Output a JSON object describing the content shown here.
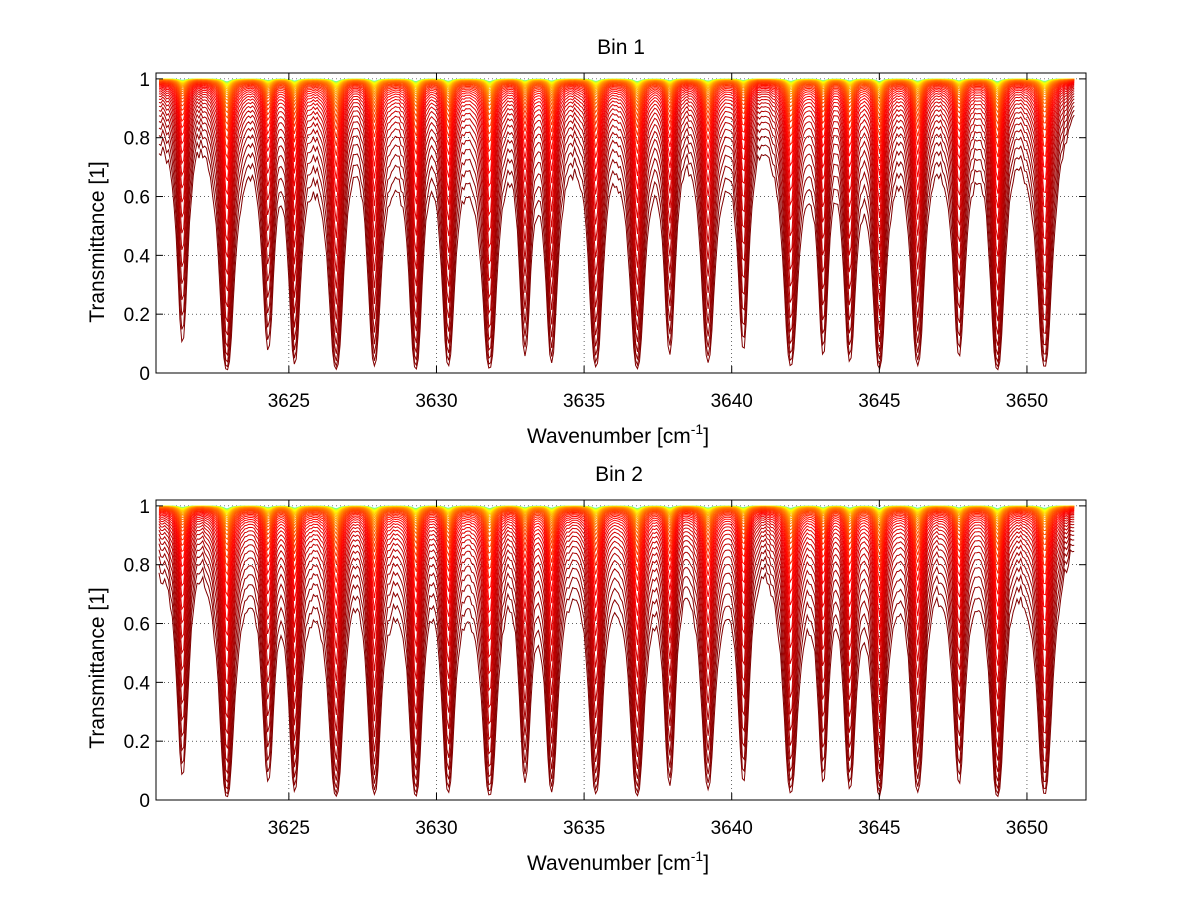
{
  "chart_data": [
    {
      "type": "line",
      "title": "Bin 1",
      "xlabel": "Wavenumber [cm",
      "xlabel_sup": "-1",
      "xlabel_tail": "]",
      "ylabel": "Transmittance [1]",
      "xlim": [
        3620.5,
        3652
      ],
      "ylim": [
        0,
        1.02
      ],
      "xticks": [
        3625,
        3630,
        3635,
        3640,
        3645,
        3650
      ],
      "yticks": [
        0,
        0.2,
        0.4,
        0.6,
        0.8,
        1
      ],
      "ytick_labels": [
        "0",
        "0.2",
        "0.4",
        "0.6",
        "0.8",
        "1"
      ],
      "grid": true,
      "series_count": 40,
      "colormap": "jet (top curves green/yellow, lower curves orange to dark red)",
      "absorption_lines": [
        {
          "wn": 3621.4,
          "strength": 0.5,
          "width": 0.14
        },
        {
          "wn": 3622.9,
          "strength": 1.0,
          "width": 0.13
        },
        {
          "wn": 3624.3,
          "strength": 0.55,
          "width": 0.14
        },
        {
          "wn": 3625.2,
          "strength": 0.75,
          "width": 0.12
        },
        {
          "wn": 3626.6,
          "strength": 0.95,
          "width": 0.14
        },
        {
          "wn": 3627.9,
          "strength": 0.8,
          "width": 0.13
        },
        {
          "wn": 3629.3,
          "strength": 0.95,
          "width": 0.12
        },
        {
          "wn": 3630.4,
          "strength": 0.8,
          "width": 0.13
        },
        {
          "wn": 3631.8,
          "strength": 0.9,
          "width": 0.14
        },
        {
          "wn": 3633.0,
          "strength": 0.6,
          "width": 0.13
        },
        {
          "wn": 3633.9,
          "strength": 0.7,
          "width": 0.12
        },
        {
          "wn": 3635.4,
          "strength": 0.85,
          "width": 0.14
        },
        {
          "wn": 3636.8,
          "strength": 0.9,
          "width": 0.13
        },
        {
          "wn": 3637.9,
          "strength": 0.6,
          "width": 0.13
        },
        {
          "wn": 3639.2,
          "strength": 0.7,
          "width": 0.14
        },
        {
          "wn": 3640.4,
          "strength": 0.55,
          "width": 0.13
        },
        {
          "wn": 3642.0,
          "strength": 0.8,
          "width": 0.14
        },
        {
          "wn": 3643.1,
          "strength": 0.6,
          "width": 0.12
        },
        {
          "wn": 3644.0,
          "strength": 0.7,
          "width": 0.13
        },
        {
          "wn": 3645.0,
          "strength": 0.9,
          "width": 0.12
        },
        {
          "wn": 3646.3,
          "strength": 0.8,
          "width": 0.14
        },
        {
          "wn": 3647.7,
          "strength": 0.6,
          "width": 0.13
        },
        {
          "wn": 3649.0,
          "strength": 1.0,
          "width": 0.13
        },
        {
          "wn": 3650.6,
          "strength": 0.85,
          "width": 0.14
        }
      ]
    },
    {
      "type": "line",
      "title": "Bin 2",
      "xlabel": "Wavenumber [cm",
      "xlabel_sup": "-1",
      "xlabel_tail": "]",
      "ylabel": "Transmittance [1]",
      "xlim": [
        3620.5,
        3652
      ],
      "ylim": [
        0,
        1.02
      ],
      "xticks": [
        3625,
        3630,
        3635,
        3640,
        3645,
        3650
      ],
      "yticks": [
        0,
        0.2,
        0.4,
        0.6,
        0.8,
        1
      ],
      "ytick_labels": [
        "0",
        "0.2",
        "0.4",
        "0.6",
        "0.8",
        "1"
      ],
      "grid": true,
      "series_count": 40,
      "colormap": "jet (top curves green/yellow, lower curves orange to dark red)",
      "absorption_lines": [
        {
          "wn": 3621.4,
          "strength": 0.55,
          "width": 0.14
        },
        {
          "wn": 3622.9,
          "strength": 1.0,
          "width": 0.13
        },
        {
          "wn": 3624.3,
          "strength": 0.6,
          "width": 0.14
        },
        {
          "wn": 3625.2,
          "strength": 0.75,
          "width": 0.12
        },
        {
          "wn": 3626.6,
          "strength": 0.95,
          "width": 0.14
        },
        {
          "wn": 3627.9,
          "strength": 0.85,
          "width": 0.13
        },
        {
          "wn": 3629.3,
          "strength": 0.95,
          "width": 0.12
        },
        {
          "wn": 3630.4,
          "strength": 0.8,
          "width": 0.13
        },
        {
          "wn": 3631.8,
          "strength": 0.9,
          "width": 0.14
        },
        {
          "wn": 3633.0,
          "strength": 0.6,
          "width": 0.13
        },
        {
          "wn": 3633.9,
          "strength": 0.75,
          "width": 0.12
        },
        {
          "wn": 3635.4,
          "strength": 0.85,
          "width": 0.14
        },
        {
          "wn": 3636.8,
          "strength": 0.9,
          "width": 0.13
        },
        {
          "wn": 3637.9,
          "strength": 0.65,
          "width": 0.13
        },
        {
          "wn": 3639.2,
          "strength": 0.7,
          "width": 0.14
        },
        {
          "wn": 3640.4,
          "strength": 0.6,
          "width": 0.13
        },
        {
          "wn": 3642.0,
          "strength": 0.8,
          "width": 0.14
        },
        {
          "wn": 3643.1,
          "strength": 0.6,
          "width": 0.12
        },
        {
          "wn": 3644.0,
          "strength": 0.7,
          "width": 0.13
        },
        {
          "wn": 3645.0,
          "strength": 0.9,
          "width": 0.12
        },
        {
          "wn": 3646.3,
          "strength": 0.8,
          "width": 0.14
        },
        {
          "wn": 3647.7,
          "strength": 0.6,
          "width": 0.13
        },
        {
          "wn": 3649.0,
          "strength": 1.0,
          "width": 0.13
        },
        {
          "wn": 3650.6,
          "strength": 0.85,
          "width": 0.14
        }
      ]
    }
  ]
}
